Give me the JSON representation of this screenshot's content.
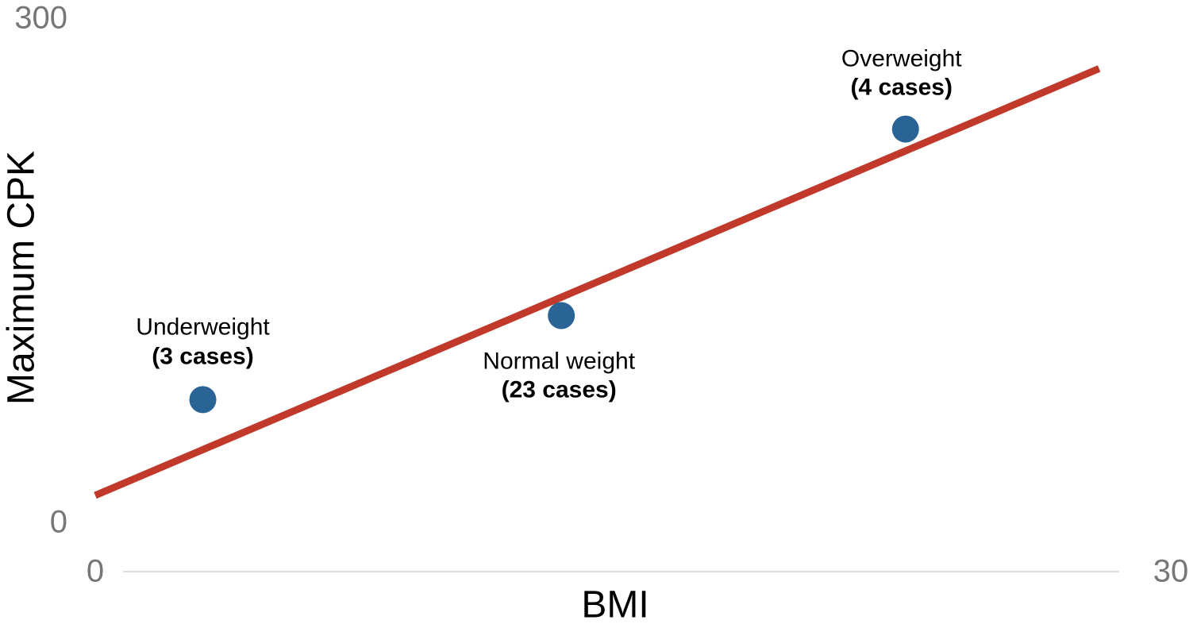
{
  "chart_data": {
    "type": "scatter",
    "x_label": "BMI",
    "y_label": "Maximum CPK",
    "x": [
      3,
      13,
      22.6
    ],
    "values": [
      74,
      124,
      235
    ],
    "color": "#2a6496",
    "point_labels": [
      [
        "Underweight",
        "(3 cases)"
      ],
      [
        "Normal weight",
        "(23 cases)"
      ],
      [
        "Overweight",
        "(4 cases)"
      ]
    ],
    "trend_line": {
      "x": [
        0,
        28
      ],
      "values": [
        17,
        271
      ],
      "color": "#c0392b"
    },
    "xlim": [
      0,
      30
    ],
    "ylim": [
      0,
      300
    ],
    "xticks": [
      0,
      30
    ],
    "yticks": [
      0,
      300
    ]
  }
}
